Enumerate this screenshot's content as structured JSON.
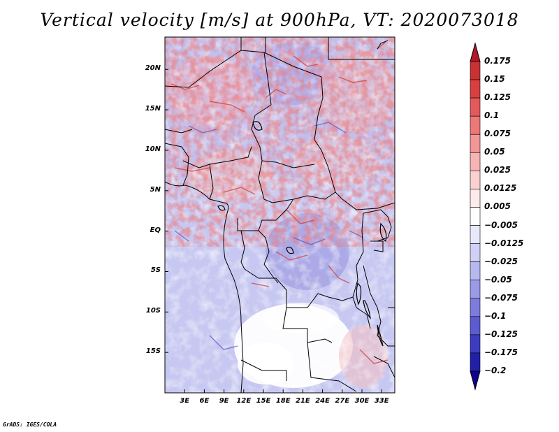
{
  "title": "Vertical velocity [m/s] at 900hPa, VT: 2020073018",
  "credit": "GrADS: IGES/COLA",
  "map": {
    "lon_range": [
      0,
      35
    ],
    "lat_range": [
      -20,
      24
    ],
    "field": "vertical velocity",
    "units": "m/s",
    "level": "900hPa",
    "valid_time": "2020073018"
  },
  "lat_ticks": [
    {
      "value": 20,
      "label": "20N"
    },
    {
      "value": 15,
      "label": "15N"
    },
    {
      "value": 10,
      "label": "10N"
    },
    {
      "value": 5,
      "label": "5N"
    },
    {
      "value": 0,
      "label": "EQ"
    },
    {
      "value": -5,
      "label": "5S"
    },
    {
      "value": -10,
      "label": "10S"
    },
    {
      "value": -15,
      "label": "15S"
    }
  ],
  "lon_ticks": [
    {
      "value": 3,
      "label": "3E"
    },
    {
      "value": 6,
      "label": "6E"
    },
    {
      "value": 9,
      "label": "9E"
    },
    {
      "value": 12,
      "label": "12E"
    },
    {
      "value": 15,
      "label": "15E"
    },
    {
      "value": 18,
      "label": "18E"
    },
    {
      "value": 21,
      "label": "21E"
    },
    {
      "value": 24,
      "label": "24E"
    },
    {
      "value": 27,
      "label": "27E"
    },
    {
      "value": 30,
      "label": "30E"
    },
    {
      "value": 33,
      "label": "33E"
    }
  ],
  "colorbar": {
    "levels": [
      "0.175",
      "0.15",
      "0.125",
      "0.1",
      "0.075",
      "0.05",
      "0.025",
      "0.0125",
      "0.005",
      "−0.005",
      "−0.0125",
      "−0.025",
      "−0.05",
      "−0.075",
      "−0.1",
      "−0.125",
      "−0.175",
      "−0.2"
    ],
    "colors": [
      "#b2182b",
      "#c83232",
      "#d84040",
      "#e45a5a",
      "#ec7878",
      "#f29696",
      "#f7b4b4",
      "#fbd0d0",
      "#fdeaea",
      "#ffffff",
      "#e8e8fb",
      "#d0d0f6",
      "#b8b8f0",
      "#9a9ae6",
      "#7c7cdc",
      "#5c5cd0",
      "#3c3cc0",
      "#2020a8",
      "#100090"
    ]
  }
}
